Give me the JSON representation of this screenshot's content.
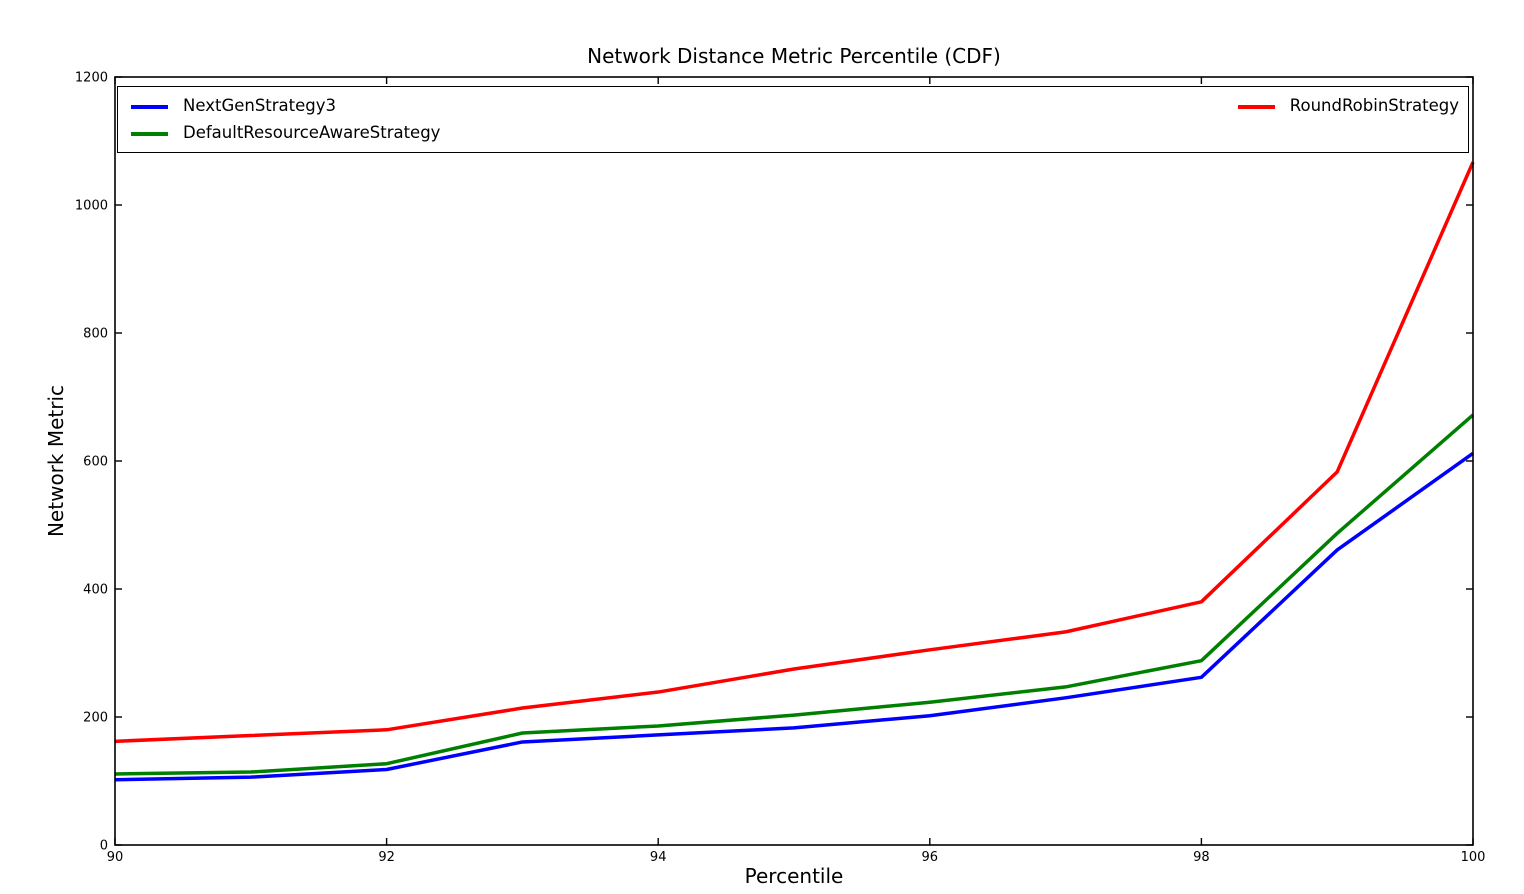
{
  "chart_data": {
    "type": "line",
    "title": "Network Distance Metric Percentile (CDF)",
    "xlabel": "Percentile",
    "ylabel": "Network Metric",
    "xlim": [
      90,
      100
    ],
    "ylim": [
      0,
      1200
    ],
    "xticks": [
      90,
      92,
      94,
      96,
      98,
      100
    ],
    "yticks": [
      0,
      200,
      400,
      600,
      800,
      1000,
      1200
    ],
    "grid": false,
    "legend_position": "top-inside, 2 columns, full width box",
    "axis_color": "#000000",
    "line_width": 3.5,
    "x": [
      90,
      91,
      92,
      93,
      94,
      95,
      96,
      97,
      98,
      99,
      100
    ],
    "series": [
      {
        "name": "NextGenStrategy3",
        "color": "#0000ff",
        "values": [
          102,
          106,
          118,
          161,
          172,
          183,
          202,
          230,
          262,
          461,
          612
        ]
      },
      {
        "name": "DefaultResourceAwareStrategy",
        "color": "#008000",
        "values": [
          111,
          114,
          127,
          175,
          186,
          203,
          223,
          247,
          288,
          487,
          672
        ]
      },
      {
        "name": "RoundRobinStrategy",
        "color": "#ff0000",
        "values": [
          162,
          171,
          180,
          214,
          239,
          275,
          305,
          333,
          380,
          583,
          1067
        ]
      }
    ]
  }
}
